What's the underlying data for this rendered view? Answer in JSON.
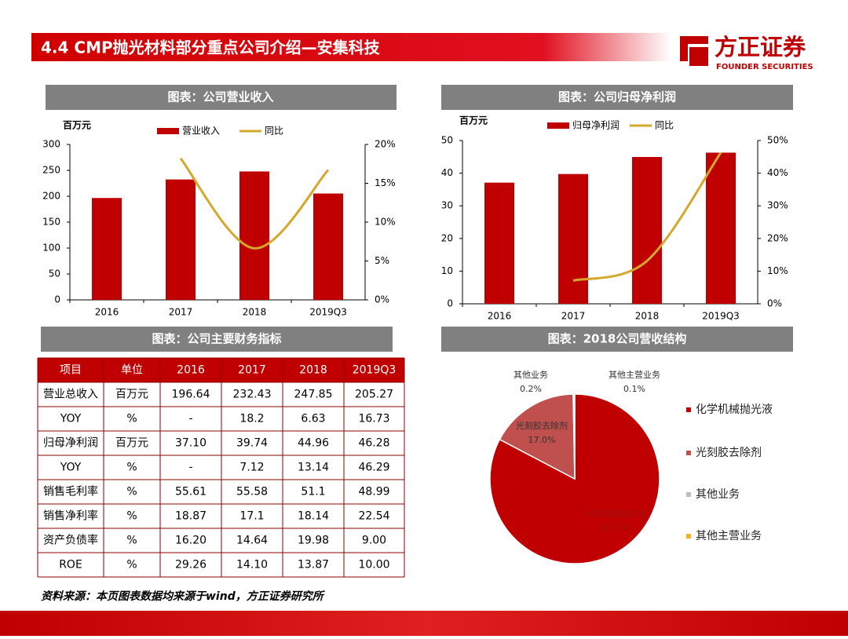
{
  "header": {
    "title": "4.4 CMP抛光材料部分重点公司介绍—安集科技",
    "brand": "方正证券",
    "brand_en": "FOUNDER SECURITIES"
  },
  "chart_data": [
    {
      "type": "combo",
      "title": "图表：公司营业收入",
      "y_label": "百万元",
      "categories": [
        "2016",
        "2017",
        "2018",
        "2019Q3"
      ],
      "series": [
        {
          "name": "营业收入",
          "type": "bar",
          "color": "#c00000",
          "values": [
            196.64,
            232.43,
            247.85,
            205.27
          ]
        },
        {
          "name": "同比",
          "type": "line",
          "axis": "y2",
          "color": "#d4a82a",
          "values": [
            null,
            18.2,
            6.63,
            16.73
          ]
        }
      ],
      "ylim": [
        0,
        300
      ],
      "yticks": [
        0,
        50,
        100,
        150,
        200,
        250,
        300
      ],
      "y2lim": [
        0,
        20
      ],
      "y2ticks": [
        {
          "value": 0,
          "label": "0%"
        },
        {
          "value": 5,
          "label": "5%"
        },
        {
          "value": 10,
          "label": "10%"
        },
        {
          "value": 15,
          "label": "15%"
        },
        {
          "value": 20,
          "label": "20%"
        }
      ]
    },
    {
      "type": "combo",
      "title": "图表：公司归母净利润",
      "y_label": "百万元",
      "categories": [
        "2016",
        "2017",
        "2018",
        "2019Q3"
      ],
      "series": [
        {
          "name": "归母净利润",
          "type": "bar",
          "color": "#c00000",
          "values": [
            37.1,
            39.74,
            44.96,
            46.28
          ]
        },
        {
          "name": "同比",
          "type": "line",
          "axis": "y2",
          "color": "#d4a82a",
          "values": [
            null,
            7.12,
            13.14,
            46.29
          ]
        }
      ],
      "ylim": [
        0,
        50
      ],
      "yticks": [
        0,
        10,
        20,
        30,
        40,
        50
      ],
      "y2lim": [
        0,
        50
      ],
      "y2ticks": [
        {
          "value": 0,
          "label": "0%"
        },
        {
          "value": 10,
          "label": "10%"
        },
        {
          "value": 20,
          "label": "20%"
        },
        {
          "value": 30,
          "label": "30%"
        },
        {
          "value": 40,
          "label": "40%"
        },
        {
          "value": 50,
          "label": "50%"
        }
      ]
    },
    {
      "type": "pie",
      "title": "图表：2018公司营收结构",
      "categories": [
        "化学机械抛光液",
        "光刻胶去除剂",
        "其他业务",
        "其他主营业务"
      ],
      "values": [
        82.7,
        17.0,
        0.2,
        0.1
      ],
      "value_labels": [
        "82.7%",
        "17.0%",
        "0.2%",
        "0.1%"
      ],
      "colors": [
        "#c00000",
        "#c0504d",
        "#bfbfbf",
        "#f0b428"
      ],
      "legend": "right"
    }
  ],
  "table": {
    "title": "图表：公司主要财务指标",
    "header": [
      "项目",
      "单位",
      "2016",
      "2017",
      "2018",
      "2019Q3"
    ],
    "rows": [
      [
        "营业总收入",
        "百万元",
        "196.64",
        "232.43",
        "247.85",
        "205.27"
      ],
      [
        "YOY",
        "%",
        "-",
        "18.2",
        "6.63",
        "16.73"
      ],
      [
        "归母净利润",
        "百万元",
        "37.10",
        "39.74",
        "44.96",
        "46.28"
      ],
      [
        "YOY",
        "%",
        "-",
        "7.12",
        "13.14",
        "46.29"
      ],
      [
        "销售毛利率",
        "%",
        "55.61",
        "55.58",
        "51.1",
        "48.99"
      ],
      [
        "销售净利率",
        "%",
        "18.87",
        "17.1",
        "18.14",
        "22.54"
      ],
      [
        "资产负债率",
        "%",
        "16.20",
        "14.64",
        "19.98",
        "9.00"
      ],
      [
        "ROE",
        "%",
        "29.26",
        "14.10",
        "13.87",
        "10.00"
      ]
    ]
  },
  "footer": "资料来源：本页图表数据均来源于wind，方正证券研究所"
}
